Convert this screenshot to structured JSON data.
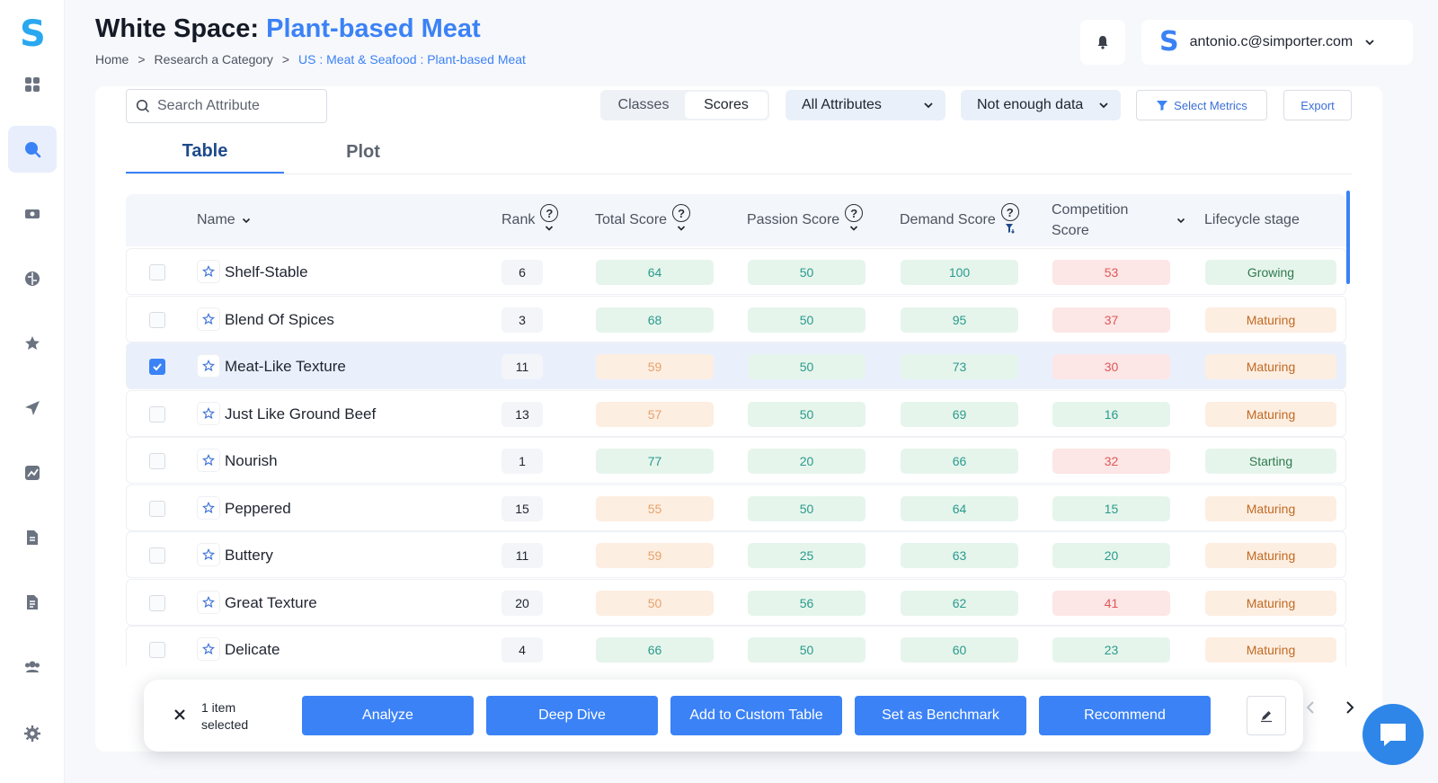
{
  "brand": {
    "logo_letter": "S"
  },
  "header": {
    "title_prefix": "White Space: ",
    "title_accent": "Plant-based Meat",
    "breadcrumb": {
      "home": "Home",
      "research": "Research a Category",
      "current": "US : Meat & Seafood : Plant-based Meat",
      "separator": ">"
    },
    "user_email": "antonio.c@simporter.com"
  },
  "sidebar": {
    "items": [
      {
        "name": "dashboard-icon"
      },
      {
        "name": "search-icon",
        "active": true
      },
      {
        "name": "ticket-icon"
      },
      {
        "name": "brain-icon"
      },
      {
        "name": "star-icon"
      },
      {
        "name": "send-icon"
      },
      {
        "name": "trend-chart-icon"
      },
      {
        "name": "document-icon"
      },
      {
        "name": "report-icon"
      },
      {
        "name": "users-icon"
      },
      {
        "name": "gear-icon"
      }
    ]
  },
  "toolbar": {
    "search_placeholder": "Search Attribute",
    "segments": [
      "Classes",
      "Scores"
    ],
    "active_segment": "Scores",
    "attributes_dropdown": "All Attributes",
    "data_dropdown": "Not enough data",
    "select_metrics_label": "Select Metrics",
    "export_label": "Export"
  },
  "tabs": [
    {
      "label": "Table",
      "active": true
    },
    {
      "label": "Plot",
      "active": false
    }
  ],
  "table": {
    "headers": {
      "name": "Name",
      "rank": "Rank",
      "total": "Total Score",
      "passion": "Passion Score",
      "demand": "Demand Score",
      "competition_line1": "Competition",
      "competition_line2": "Score",
      "lifecycle": "Lifecycle stage",
      "help": "?"
    },
    "rows": [
      {
        "name": "Shelf-Stable",
        "rank": "6",
        "total": "64",
        "passion": "50",
        "demand": "100",
        "competition": "53",
        "lifecycle": "Growing",
        "checked": false
      },
      {
        "name": "Blend Of Spices",
        "rank": "3",
        "total": "68",
        "passion": "50",
        "demand": "95",
        "competition": "37",
        "lifecycle": "Maturing",
        "checked": false
      },
      {
        "name": "Meat-Like Texture",
        "rank": "11",
        "total": "59",
        "passion": "50",
        "demand": "73",
        "competition": "30",
        "lifecycle": "Maturing",
        "checked": true
      },
      {
        "name": "Just Like Ground Beef",
        "rank": "13",
        "total": "57",
        "passion": "50",
        "demand": "69",
        "competition": "16",
        "lifecycle": "Maturing",
        "checked": false
      },
      {
        "name": "Nourish",
        "rank": "1",
        "total": "77",
        "passion": "20",
        "demand": "66",
        "competition": "32",
        "lifecycle": "Starting",
        "checked": false
      },
      {
        "name": "Peppered",
        "rank": "15",
        "total": "55",
        "passion": "50",
        "demand": "64",
        "competition": "15",
        "lifecycle": "Maturing",
        "checked": false
      },
      {
        "name": "Buttery",
        "rank": "11",
        "total": "59",
        "passion": "25",
        "demand": "63",
        "competition": "20",
        "lifecycle": "Maturing",
        "checked": false
      },
      {
        "name": "Great Texture",
        "rank": "20",
        "total": "50",
        "passion": "56",
        "demand": "62",
        "competition": "41",
        "lifecycle": "Maturing",
        "checked": false
      },
      {
        "name": "Delicate",
        "rank": "4",
        "total": "66",
        "passion": "50",
        "demand": "60",
        "competition": "23",
        "lifecycle": "Maturing",
        "checked": false
      }
    ]
  },
  "action_bar": {
    "count_line1": "1 item",
    "count_line2": "selected",
    "buttons": [
      "Analyze",
      "Deep Dive",
      "Add to Custom Table",
      "Set as Benchmark",
      "Recommend"
    ]
  },
  "colors": {
    "accent": "#3b82f6",
    "good": "#2a9a8c",
    "warn": "#e6a36a",
    "bad": "#de5858"
  }
}
